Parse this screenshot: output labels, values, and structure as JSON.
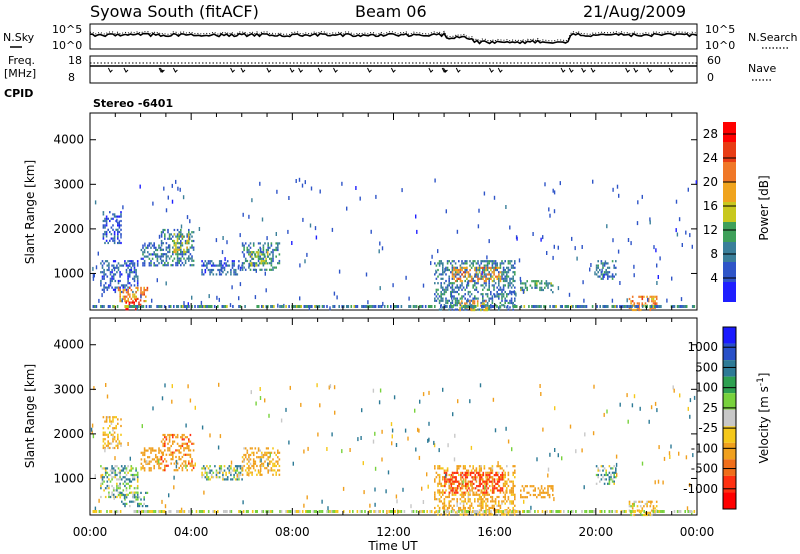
{
  "header": {
    "station": "Syowa South (fitACF)",
    "beam": "Beam 06",
    "date": "21/Aug/2009"
  },
  "top_labels": {
    "nsky": "N.Sky",
    "freq_line1": "Freq.",
    "freq_line2": "[MHz]",
    "cpid": "CPID",
    "nsearch": "N.Search",
    "nave": "Nave",
    "cpid_value": "Stereo -6401",
    "noise_tick_top": "10^5",
    "noise_tick_bottom": "10^0",
    "freq_tick_top": "18",
    "freq_tick_bottom": "8",
    "nave_tick_top": "60",
    "nave_tick_bottom": "0"
  },
  "xaxis": {
    "label": "Time UT",
    "ticks": [
      "00:00",
      "04:00",
      "08:00",
      "12:00",
      "16:00",
      "20:00",
      "00:00"
    ]
  },
  "colors": {
    "power_scale": [
      "#1f1fff",
      "#2f55c8",
      "#3a7f9a",
      "#3fa05a",
      "#c8c81e",
      "#f0a41e",
      "#f07828",
      "#e83c14",
      "#ff0000"
    ],
    "velocity_scale": [
      "#ff0000",
      "#ff3010",
      "#f06e1a",
      "#f0a01e",
      "#f5c81a",
      "#c8c8c8",
      "#78d23c",
      "#2da050",
      "#2d7a96",
      "#2850c8",
      "#1a1aff"
    ]
  },
  "chart_data": [
    {
      "type": "heatmap",
      "title": "",
      "xlabel": "Time UT",
      "ylabel": "Slant Range [km]",
      "xlim": [
        0,
        24
      ],
      "ylim": [
        180,
        4600
      ],
      "yticks": [
        1000,
        2000,
        3000,
        4000
      ],
      "colorbar": {
        "label": "Power [dB]",
        "ticks": [
          4,
          8,
          12,
          16,
          20,
          24,
          28
        ],
        "range": [
          0,
          30
        ]
      },
      "regions": [
        {
          "t0": 0.4,
          "t1": 1.9,
          "r0": 600,
          "r1": 1300,
          "value": 6
        },
        {
          "t0": 0.5,
          "t1": 1.2,
          "r0": 1700,
          "r1": 2400,
          "value": 5
        },
        {
          "t0": 1.1,
          "t1": 2.3,
          "r0": 380,
          "r1": 700,
          "value": 20
        },
        {
          "t0": 1.4,
          "t1": 2.0,
          "r0": 200,
          "r1": 420,
          "value": 28
        },
        {
          "t0": 2.0,
          "t1": 2.8,
          "r0": 1200,
          "r1": 1700,
          "value": 7
        },
        {
          "t0": 2.8,
          "t1": 4.1,
          "r0": 1200,
          "r1": 2000,
          "value": 8
        },
        {
          "t0": 3.3,
          "t1": 3.9,
          "r0": 1500,
          "r1": 1900,
          "value": 16
        },
        {
          "t0": 4.4,
          "t1": 6.0,
          "r0": 1000,
          "r1": 1300,
          "value": 6
        },
        {
          "t0": 6.0,
          "t1": 7.5,
          "r0": 1100,
          "r1": 1700,
          "value": 8
        },
        {
          "t0": 6.3,
          "t1": 7.0,
          "r0": 1200,
          "r1": 1500,
          "value": 13
        },
        {
          "t0": 13.6,
          "t1": 16.8,
          "r0": 200,
          "r1": 1300,
          "value": 8
        },
        {
          "t0": 14.3,
          "t1": 16.2,
          "r0": 850,
          "r1": 1150,
          "value": 20
        },
        {
          "t0": 14.6,
          "t1": 15.7,
          "r0": 200,
          "r1": 400,
          "value": 18
        },
        {
          "t0": 17.0,
          "t1": 18.3,
          "r0": 600,
          "r1": 850,
          "value": 10
        },
        {
          "t0": 20.0,
          "t1": 20.8,
          "r0": 900,
          "r1": 1300,
          "value": 8
        },
        {
          "t0": 21.3,
          "t1": 22.4,
          "r0": 200,
          "r1": 500,
          "value": 20
        }
      ]
    },
    {
      "type": "heatmap",
      "title": "",
      "xlabel": "Time UT",
      "ylabel": "Slant Range [km]",
      "xlim": [
        0,
        24
      ],
      "ylim": [
        180,
        4600
      ],
      "yticks": [
        1000,
        2000,
        3000,
        4000
      ],
      "colorbar": {
        "label": "Velocity [m s^-1]",
        "ticks": [
          1000,
          500,
          100,
          25,
          -25,
          -100,
          -500,
          -1000
        ],
        "range": [
          -1200,
          1200
        ]
      },
      "regions": [
        {
          "t0": 0.4,
          "t1": 1.9,
          "r0": 600,
          "r1": 1300,
          "value": 80
        },
        {
          "t0": 0.5,
          "t1": 1.2,
          "r0": 1700,
          "r1": 2400,
          "value": -120
        },
        {
          "t0": 1.1,
          "t1": 2.3,
          "r0": 380,
          "r1": 700,
          "value": 120
        },
        {
          "t0": 2.0,
          "t1": 2.8,
          "r0": 1200,
          "r1": 1700,
          "value": -250
        },
        {
          "t0": 2.8,
          "t1": 4.1,
          "r0": 1200,
          "r1": 2000,
          "value": -400
        },
        {
          "t0": 4.4,
          "t1": 6.0,
          "r0": 1000,
          "r1": 1300,
          "value": 60
        },
        {
          "t0": 6.0,
          "t1": 7.5,
          "r0": 1100,
          "r1": 1700,
          "value": -150
        },
        {
          "t0": 13.6,
          "t1": 16.8,
          "r0": 200,
          "r1": 1300,
          "value": -150
        },
        {
          "t0": 14.0,
          "t1": 16.3,
          "r0": 700,
          "r1": 1150,
          "value": -600
        },
        {
          "t0": 17.0,
          "t1": 18.3,
          "r0": 600,
          "r1": 850,
          "value": -300
        },
        {
          "t0": 20.0,
          "t1": 20.8,
          "r0": 900,
          "r1": 1300,
          "value": 80
        },
        {
          "t0": 21.3,
          "t1": 22.4,
          "r0": 200,
          "r1": 500,
          "value": -80
        }
      ]
    }
  ]
}
